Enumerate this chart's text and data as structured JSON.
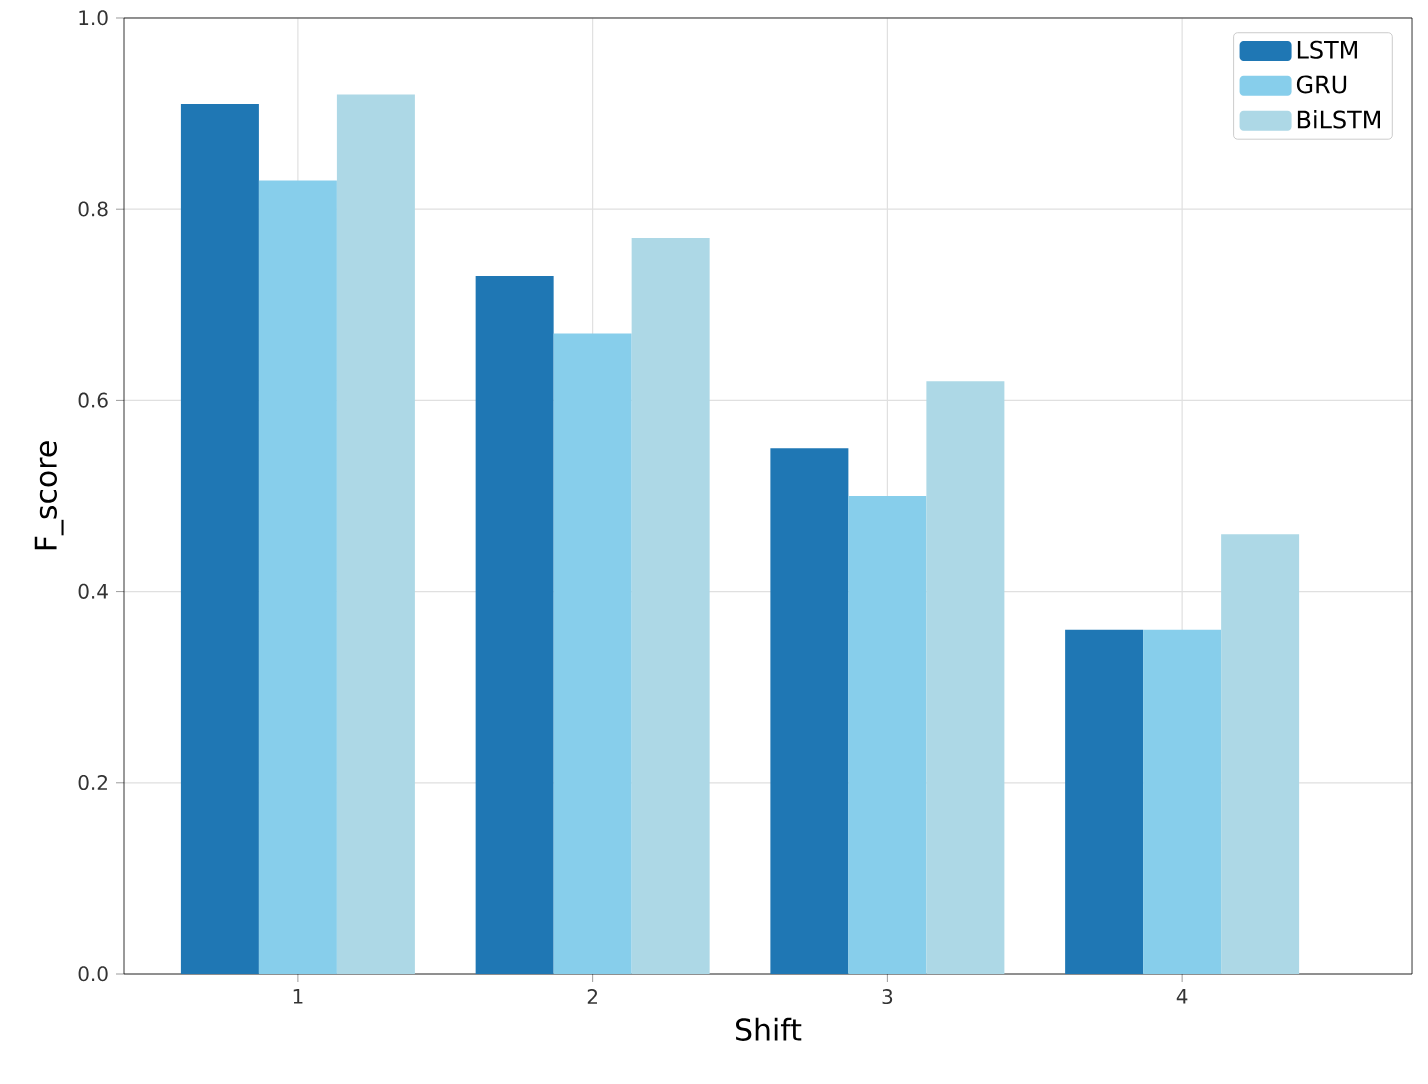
{
  "chart_data": {
    "type": "bar",
    "xlabel": "Shift",
    "ylabel": "F_score",
    "categories": [
      "1",
      "2",
      "3",
      "4"
    ],
    "series": [
      {
        "name": "LSTM",
        "color": "#1f77b4",
        "values": [
          0.91,
          0.73,
          0.55,
          0.36
        ]
      },
      {
        "name": "GRU",
        "color": "#87ceeb",
        "values": [
          0.83,
          0.67,
          0.5,
          0.36
        ]
      },
      {
        "name": "BiLSTM",
        "color": "#add8e6",
        "values": [
          0.92,
          0.77,
          0.62,
          0.46
        ]
      }
    ],
    "ylim": [
      0,
      1
    ],
    "yticks": [
      {
        "value": 0,
        "label": "0.0"
      },
      0.2,
      0.4,
      0.6,
      0.8,
      {
        "value": 1,
        "label": "1.0"
      }
    ],
    "grid": true,
    "legend": "top right"
  }
}
